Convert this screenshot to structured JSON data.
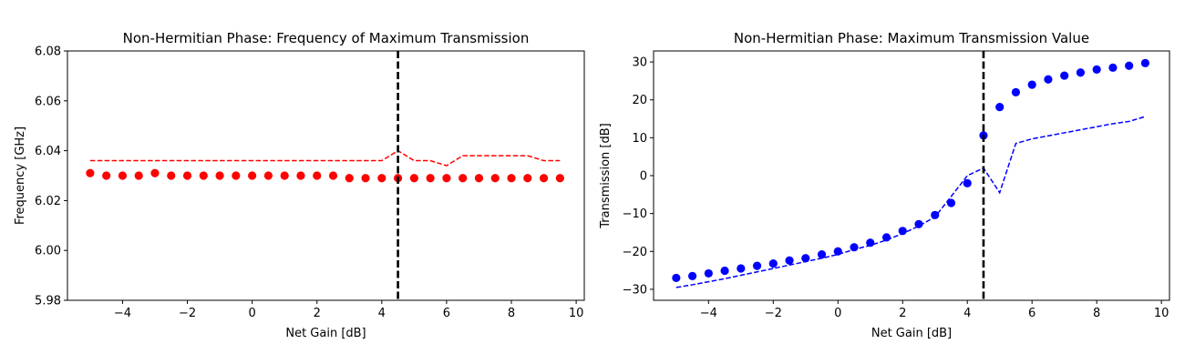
{
  "chart_data": [
    {
      "type": "scatter",
      "title": "Non-Hermitian Phase: Frequency of Maximum Transmission",
      "xlabel": "Net Gain [dB]",
      "ylabel": "Frequency [GHz]",
      "xlim": [
        -5.7,
        10.25
      ],
      "ylim": [
        5.98,
        6.08
      ],
      "xticks": [
        -4,
        -2,
        0,
        2,
        4,
        6,
        8,
        10
      ],
      "yticks": [
        5.98,
        6.0,
        6.02,
        6.04,
        6.06,
        6.08
      ],
      "xtick_labels": [
        "−4",
        "−2",
        "0",
        "2",
        "4",
        "6",
        "8",
        "10"
      ],
      "ytick_labels": [
        "5.98",
        "6.00",
        "6.02",
        "6.04",
        "6.06",
        "6.08"
      ],
      "color": "#ff0000",
      "vline_x": 4.5,
      "vline_color": "#000000",
      "grid": false,
      "x": [
        -5,
        -4.5,
        -4,
        -3.5,
        -3,
        -2.5,
        -2,
        -1.5,
        -1,
        -0.5,
        0,
        0.5,
        1,
        1.5,
        2,
        2.5,
        3,
        3.5,
        4,
        4.5,
        5,
        5.5,
        6,
        6.5,
        7,
        7.5,
        8,
        8.5,
        9,
        9.5
      ],
      "series": [
        {
          "style": "markers",
          "values": [
            6.031,
            6.03,
            6.03,
            6.03,
            6.031,
            6.03,
            6.03,
            6.03,
            6.03,
            6.03,
            6.03,
            6.03,
            6.03,
            6.03,
            6.03,
            6.03,
            6.029,
            6.029,
            6.029,
            6.029,
            6.029,
            6.029,
            6.029,
            6.029,
            6.029,
            6.029,
            6.029,
            6.029,
            6.029,
            6.029
          ]
        },
        {
          "style": "dashed",
          "values": [
            6.036,
            6.036,
            6.036,
            6.036,
            6.036,
            6.036,
            6.036,
            6.036,
            6.036,
            6.036,
            6.036,
            6.036,
            6.036,
            6.036,
            6.036,
            6.036,
            6.036,
            6.036,
            6.036,
            6.04,
            6.036,
            6.036,
            6.034,
            6.038,
            6.038,
            6.038,
            6.038,
            6.038,
            6.036,
            6.036
          ]
        }
      ]
    },
    {
      "type": "scatter",
      "title": "Non-Hermitian Phase: Maximum Transmission Value",
      "xlabel": "Net Gain [dB]",
      "ylabel": "Transmission [dB]",
      "xlim": [
        -5.7,
        10.25
      ],
      "ylim": [
        -32.9,
        32.9
      ],
      "xticks": [
        -4,
        -2,
        0,
        2,
        4,
        6,
        8,
        10
      ],
      "yticks": [
        -30,
        -20,
        -10,
        0,
        10,
        20,
        30
      ],
      "xtick_labels": [
        "−4",
        "−2",
        "0",
        "2",
        "4",
        "6",
        "8",
        "10"
      ],
      "ytick_labels": [
        "−30",
        "−20",
        "−10",
        "0",
        "10",
        "20",
        "30"
      ],
      "color": "#0000ff",
      "vline_x": 4.5,
      "vline_color": "#000000",
      "grid": false,
      "x": [
        -5,
        -4.5,
        -4,
        -3.5,
        -3,
        -2.5,
        -2,
        -1.5,
        -1,
        -0.5,
        0,
        0.5,
        1,
        1.5,
        2,
        2.5,
        3,
        3.5,
        4,
        4.5,
        5,
        5.5,
        6,
        6.5,
        7,
        7.5,
        8,
        8.5,
        9,
        9.5
      ],
      "series": [
        {
          "style": "markers",
          "values": [
            -27.0,
            -26.5,
            -25.8,
            -25.1,
            -24.5,
            -23.8,
            -23.2,
            -22.4,
            -21.8,
            -20.8,
            -20.0,
            -18.9,
            -17.7,
            -16.3,
            -14.6,
            -12.8,
            -10.4,
            -7.2,
            -2.0,
            10.6,
            18.1,
            22.0,
            24.0,
            25.4,
            26.4,
            27.2,
            28.0,
            28.5,
            29.0,
            29.7
          ]
        },
        {
          "style": "dashed",
          "values": [
            -29.5,
            -28.8,
            -28.0,
            -27.2,
            -26.3,
            -25.4,
            -24.5,
            -23.6,
            -22.7,
            -21.8,
            -20.8,
            -19.5,
            -18.4,
            -17.0,
            -15.3,
            -13.3,
            -10.9,
            -5.5,
            0.0,
            2.0,
            -4.5,
            8.5,
            9.7,
            10.5,
            11.3,
            12.1,
            12.9,
            13.7,
            14.3,
            15.6
          ]
        }
      ]
    }
  ]
}
